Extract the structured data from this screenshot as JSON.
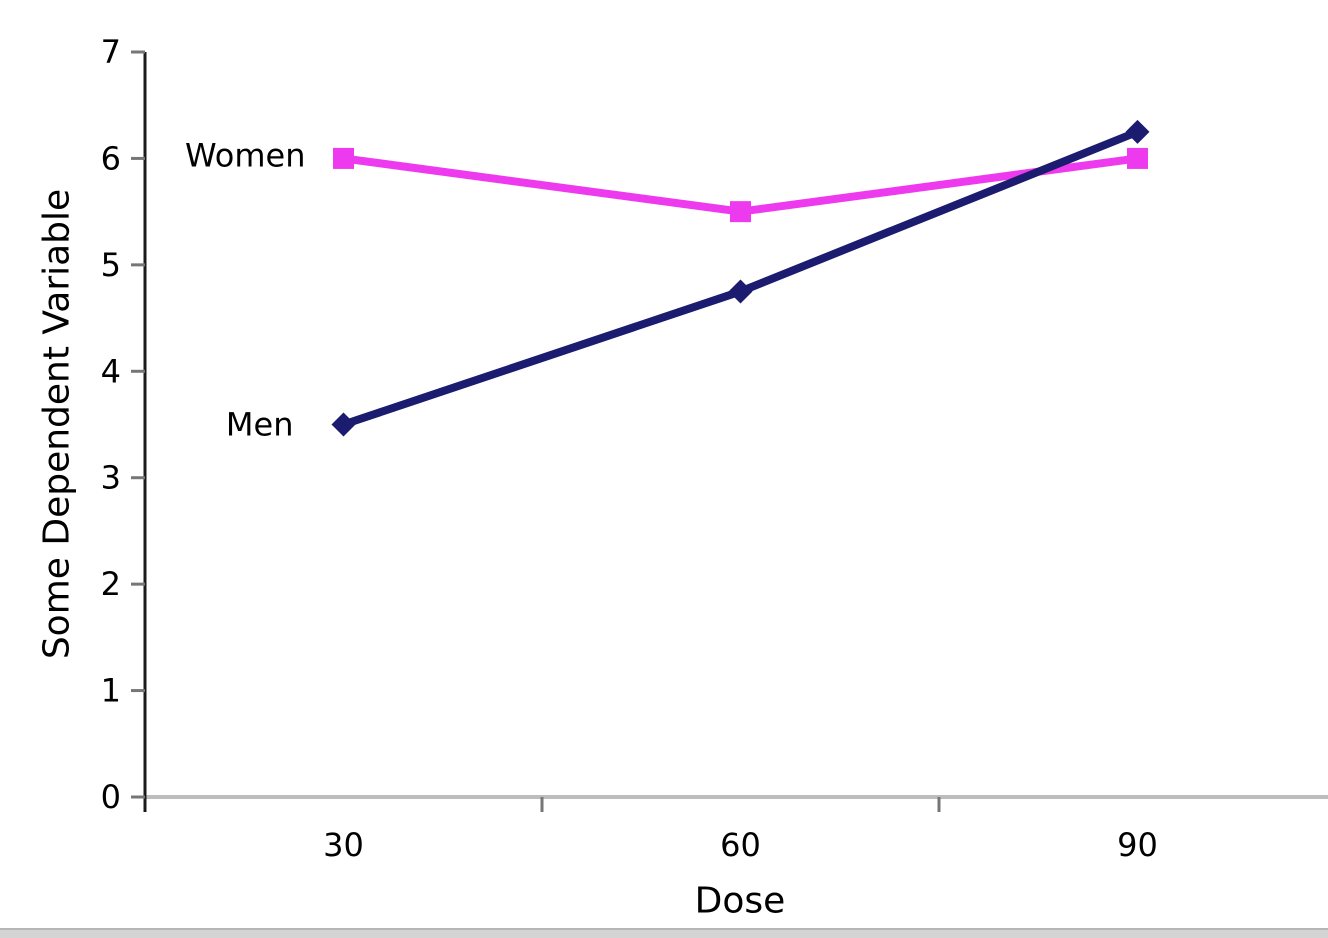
{
  "chart_data": {
    "type": "line",
    "title": "",
    "xlabel": "Dose",
    "ylabel": "Some Dependent Variable",
    "categories": [
      "30",
      "60",
      "90"
    ],
    "series": [
      {
        "name": "Women",
        "values": [
          6,
          5.5,
          6
        ],
        "color": "#EE3AEE",
        "marker": "square"
      },
      {
        "name": "Men",
        "values": [
          3.5,
          4.75,
          6.25
        ],
        "color": "#1B1B70",
        "marker": "diamond"
      }
    ],
    "ylim": [
      0,
      7
    ],
    "ytick_labels": [
      "0",
      "1",
      "2",
      "3",
      "4",
      "5",
      "6",
      "7"
    ],
    "legend_position": "inline-series-labels",
    "grid": false,
    "background": "#ffffff",
    "axis_colors": {
      "y_axis_line": "#1a1a1a",
      "x_axis_line": "#bdbdbd",
      "tick_marks": "#767676",
      "text": "#000000"
    }
  },
  "window_chrome": {
    "bottom_edge_color": "#d4d4d4"
  }
}
